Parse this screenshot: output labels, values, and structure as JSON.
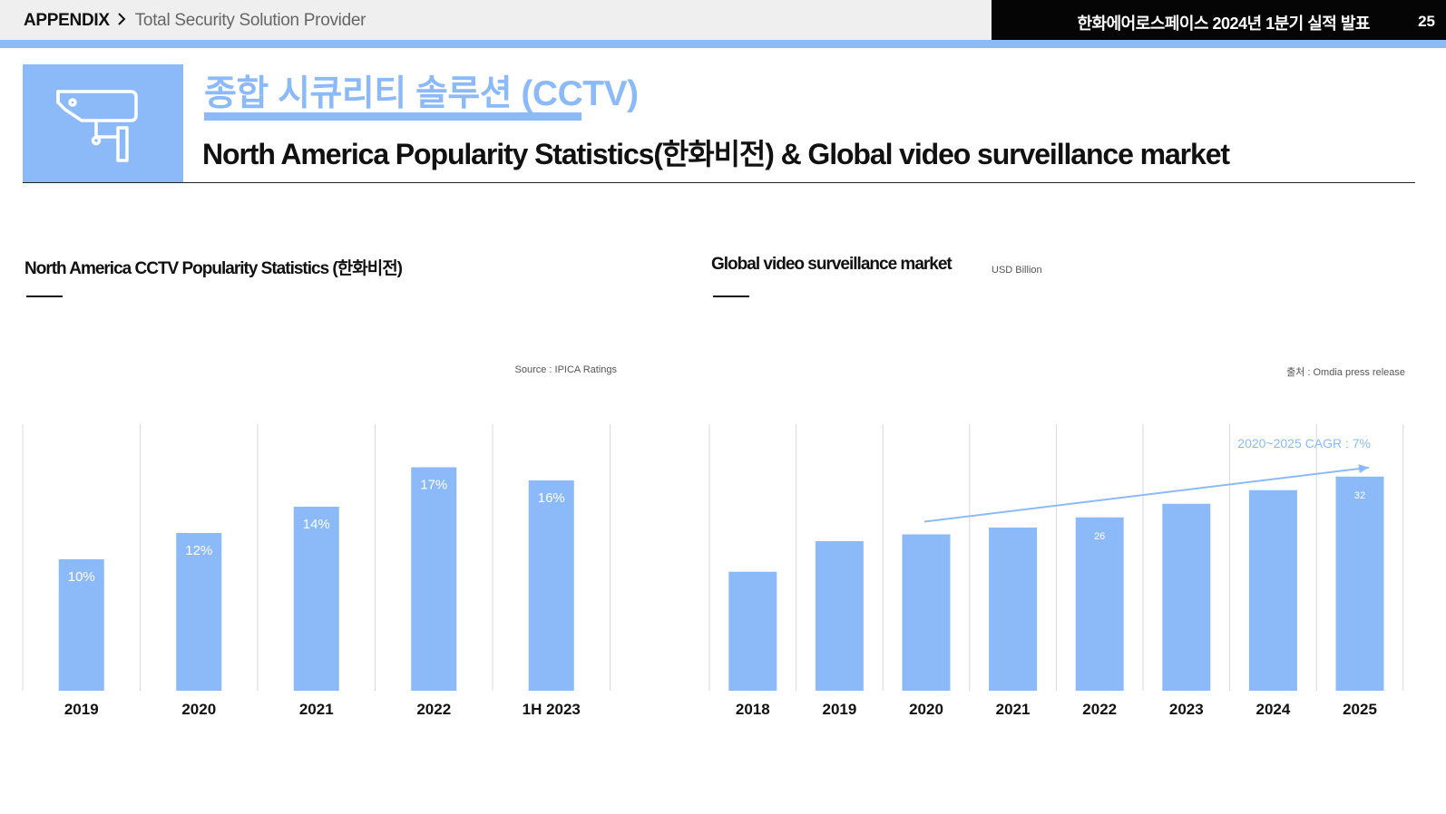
{
  "header": {
    "section": "APPENDIX",
    "chevron_icon": "chevron-right-icon",
    "subtitle": "Total Security Solution Provider",
    "report_title": "한화에어로스페이스 2024년 1분기 실적 발표",
    "page_number": "25"
  },
  "title": {
    "icon": "cctv-camera-icon",
    "korean": "종합 시큐리티 솔루션 (CCTV)",
    "english": "North America Popularity Statistics(한화비전) & Global video surveillance market"
  },
  "colors": {
    "accent": "#8cbaf9",
    "dark": "#050505",
    "grid": "#d9d9d9"
  },
  "left_panel": {
    "title": "North America CCTV Popularity Statistics (한화비전)",
    "source": "Source : IPICA Ratings"
  },
  "right_panel": {
    "title": "Global video surveillance market",
    "unit": "USD Billion",
    "source": "출처 : Omdia press release",
    "annotation": "2020~2025 CAGR : 7%"
  },
  "chart_data": [
    {
      "type": "bar",
      "categories": [
        "2019",
        "2020",
        "2021",
        "2022",
        "1H 2023"
      ],
      "values": [
        10,
        12,
        14,
        17,
        16
      ],
      "value_labels": [
        "10%",
        "12%",
        "14%",
        "17%",
        "16%"
      ],
      "ylim": [
        0,
        20
      ],
      "grid": "vertical",
      "color": "#8cbaf9"
    },
    {
      "type": "bar",
      "categories": [
        "2018",
        "2019",
        "2020",
        "2021",
        "2022",
        "2023",
        "2024",
        "2025"
      ],
      "values": [
        17.5,
        22,
        23,
        24,
        25.5,
        27.5,
        29.5,
        31.5
      ],
      "value_labels": [
        "",
        "",
        "",
        "",
        "26",
        "",
        "",
        "32"
      ],
      "ylim": [
        0,
        40
      ],
      "grid": "vertical",
      "color": "#8cbaf9",
      "trend_arrow": {
        "from": "2020",
        "to": "2025",
        "label": "2020~2025 CAGR : 7%"
      }
    }
  ]
}
